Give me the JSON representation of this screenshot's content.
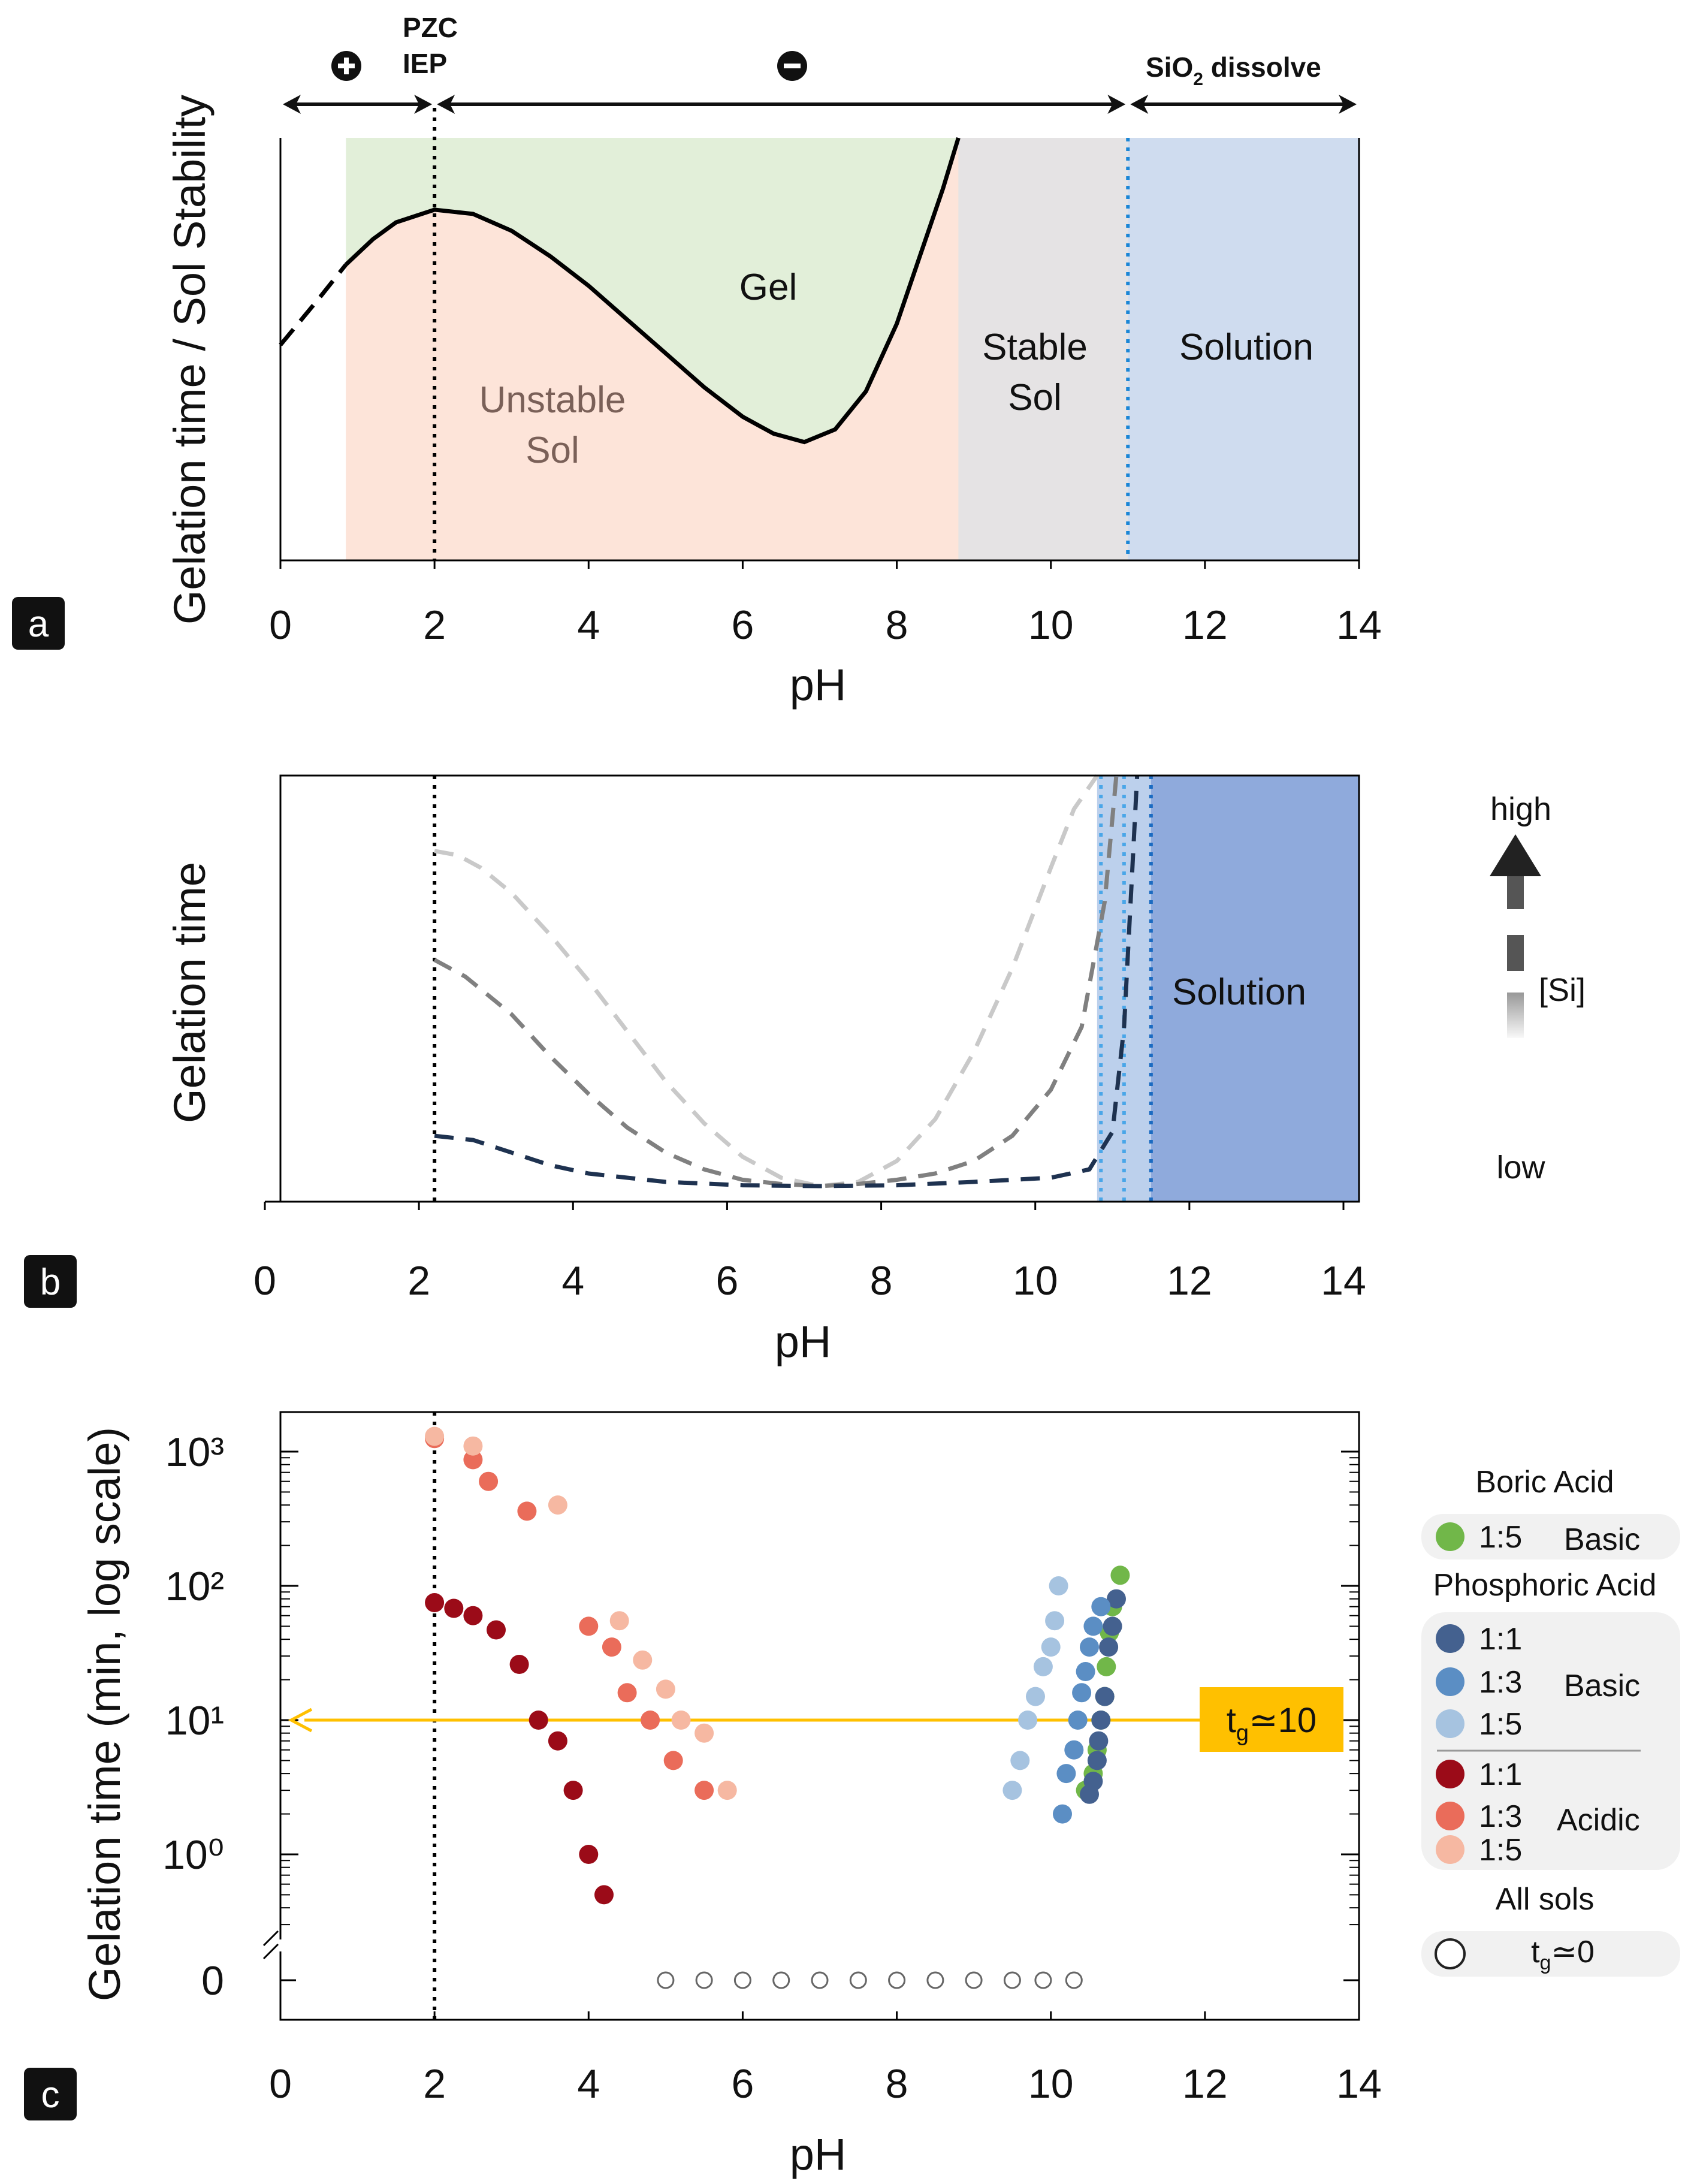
{
  "chart_data": [
    {
      "type": "area",
      "panel_label": "a",
      "title": "",
      "xlabel": "pH",
      "ylabel": "Gelation time / Sol Stability",
      "xlim": [
        0,
        14
      ],
      "xticks": [
        0,
        2,
        4,
        6,
        8,
        10,
        12,
        14
      ],
      "grid": false,
      "top_arrows": [
        {
          "label": "+",
          "from": 0,
          "to": 2
        },
        {
          "label": "−",
          "from": 2,
          "to": 11
        },
        {
          "label": "SiO₂ dissolve",
          "from": 11,
          "to": 14
        }
      ],
      "pzc_label_1": "PZC",
      "pzc_label_2": "IEP",
      "pzc_ph": 2,
      "dissolve_ph": 11,
      "regions": [
        {
          "name": "Gel",
          "label": "Gel",
          "x_from": 0.85,
          "x_to": 8.8,
          "color": "#e2efd9"
        },
        {
          "name": "Unstable Sol",
          "label_1": "Unstable",
          "label_2": "Sol",
          "x_from": 0.85,
          "x_to": 8.8,
          "color": "#fde4d9"
        },
        {
          "name": "Stable Sol",
          "label_1": "Stable",
          "label_2": "Sol",
          "x_from": 8.8,
          "x_to": 11,
          "color": "#e5e3e4"
        },
        {
          "name": "Solution",
          "label": "Solution",
          "x_from": 11,
          "x_to": 14,
          "color": "#cfdcef"
        }
      ],
      "curve": {
        "name": "gelation time boundary",
        "x": [
          0,
          0.5,
          0.85,
          1.2,
          1.5,
          2.0,
          2.5,
          3.0,
          3.5,
          4.0,
          4.5,
          5.0,
          5.5,
          6.0,
          6.4,
          6.8,
          7.2,
          7.6,
          8.0,
          8.3,
          8.6,
          8.8
        ],
        "y": [
          0.51,
          0.62,
          0.7,
          0.76,
          0.8,
          0.83,
          0.82,
          0.78,
          0.72,
          0.65,
          0.57,
          0.49,
          0.41,
          0.34,
          0.3,
          0.28,
          0.31,
          0.4,
          0.56,
          0.72,
          0.88,
          1.0
        ],
        "dashed_until_x": 0.85
      }
    },
    {
      "type": "line",
      "panel_label": "b",
      "title": "",
      "xlabel": "pH",
      "ylabel": "Gelation time",
      "xlim": [
        0,
        14
      ],
      "xticks": [
        0,
        2,
        4,
        6,
        8,
        10,
        12,
        14
      ],
      "grid": false,
      "region_label": "Solution",
      "legend": {
        "title_high": "high",
        "title_low": "low",
        "label": "[Si]"
      },
      "solution_bands": [
        {
          "x_from": 10.6,
          "x_to": 11.3,
          "color": "#bcd0ec"
        },
        {
          "x_from": 11.3,
          "x_to": 14,
          "color": "#8faadc"
        }
      ],
      "boundary_lines": [
        10.65,
        10.95,
        11.3
      ],
      "series": [
        {
          "name": "low [Si]",
          "color": "#c9c9c9",
          "x": [
            2,
            2.3,
            2.6,
            3,
            3.5,
            4,
            4.5,
            5,
            5.5,
            6,
            6.5,
            7,
            7.5,
            8,
            8.5,
            9,
            9.5,
            10,
            10.3,
            10.6
          ],
          "y": [
            0.82,
            0.81,
            0.78,
            0.72,
            0.62,
            0.51,
            0.39,
            0.27,
            0.17,
            0.09,
            0.04,
            0.02,
            0.03,
            0.08,
            0.18,
            0.34,
            0.54,
            0.78,
            0.92,
            1.0
          ]
        },
        {
          "name": "medium [Si]",
          "color": "#808080",
          "x": [
            2,
            2.4,
            3,
            3.5,
            4,
            4.5,
            5,
            5.5,
            6,
            6.5,
            7,
            7.5,
            8,
            8.5,
            9,
            9.5,
            10,
            10.4,
            10.7,
            10.85
          ],
          "y": [
            0.56,
            0.52,
            0.43,
            0.33,
            0.24,
            0.16,
            0.1,
            0.06,
            0.035,
            0.025,
            0.02,
            0.025,
            0.035,
            0.05,
            0.08,
            0.14,
            0.25,
            0.4,
            0.7,
            1.0
          ]
        },
        {
          "name": "high [Si]",
          "color": "#1e3250",
          "x": [
            2,
            2.5,
            3,
            3.5,
            4,
            5,
            6,
            7,
            8,
            9,
            10,
            10.5,
            10.8,
            10.95,
            11.05,
            11.12
          ],
          "y": [
            0.14,
            0.13,
            0.1,
            0.07,
            0.05,
            0.03,
            0.022,
            0.02,
            0.022,
            0.03,
            0.04,
            0.06,
            0.15,
            0.4,
            0.75,
            1.0
          ]
        }
      ]
    },
    {
      "type": "scatter",
      "panel_label": "c",
      "title": "",
      "xlabel": "pH",
      "ylabel": "Gelation time (min, log scale)",
      "xlim": [
        0,
        14
      ],
      "xticks": [
        0,
        2,
        4,
        6,
        8,
        10,
        12,
        14
      ],
      "yscale": "log",
      "ylim": [
        0.1,
        2000
      ],
      "yticklabels": [
        "0",
        "10⁰",
        "10¹",
        "10²",
        "10³"
      ],
      "pzc_ph": 2,
      "reference_line": {
        "y": 10,
        "label": "t_g≃10",
        "label_main": "t",
        "label_sub": "g",
        "label_rest": "≃10",
        "color": "#ffc000"
      },
      "legend_titles": {
        "boric": "Boric Acid",
        "phosphoric": "Phosphoric Acid",
        "all": "All sols"
      },
      "legend_groups": {
        "basic": "Basic",
        "acidic": "Acidic"
      },
      "legend_zero_main": "t",
      "legend_zero_sub": "g",
      "legend_zero_rest": "≃0",
      "series": [
        {
          "name": "Boric 1:5 Basic",
          "ratio": "1:5",
          "color": "#71b749",
          "x": [
            10.45,
            10.55,
            10.6,
            10.65,
            10.7,
            10.72,
            10.76,
            10.8,
            10.9
          ],
          "y": [
            3,
            4,
            6,
            10,
            15,
            25,
            45,
            70,
            120
          ]
        },
        {
          "name": "Phosphoric 1:1 Basic",
          "ratio": "1:1",
          "color": "#44618f",
          "x": [
            10.5,
            10.55,
            10.6,
            10.62,
            10.65,
            10.7,
            10.75,
            10.8,
            10.85
          ],
          "y": [
            2.8,
            3.5,
            5,
            7,
            10,
            15,
            35,
            50,
            80
          ]
        },
        {
          "name": "Phosphoric 1:3 Basic",
          "ratio": "1:3",
          "color": "#5b8ec4",
          "x": [
            10.15,
            10.2,
            10.3,
            10.35,
            10.4,
            10.45,
            10.5,
            10.55,
            10.65
          ],
          "y": [
            2,
            4,
            6,
            10,
            16,
            23,
            35,
            50,
            70
          ]
        },
        {
          "name": "Phosphoric 1:5 Basic",
          "ratio": "1:5",
          "color": "#a6c3e0",
          "x": [
            9.5,
            9.6,
            9.7,
            9.8,
            9.9,
            10.0,
            10.05,
            10.1
          ],
          "y": [
            3,
            5,
            10,
            15,
            25,
            35,
            55,
            100
          ]
        },
        {
          "name": "Phosphoric 1:1 Acidic",
          "ratio": "1:1",
          "color": "#9b0b18",
          "x": [
            2.0,
            2.25,
            2.5,
            2.8,
            3.1,
            3.35,
            3.6,
            3.8,
            4.0,
            4.2
          ],
          "y": [
            75,
            68,
            60,
            47,
            26,
            10,
            7,
            3,
            1,
            0.5
          ]
        },
        {
          "name": "Phosphoric 1:3 Acidic",
          "ratio": "1:3",
          "color": "#ea6c5a",
          "x": [
            2.0,
            2.5,
            2.7,
            3.2,
            4.0,
            4.3,
            4.5,
            4.8,
            5.1,
            5.5
          ],
          "y": [
            1250,
            870,
            600,
            360,
            50,
            35,
            16,
            10,
            5,
            3
          ]
        },
        {
          "name": "Phosphoric 1:5 Acidic",
          "ratio": "1:5",
          "color": "#f6b8a2",
          "x": [
            2.0,
            2.5,
            3.6,
            4.4,
            4.7,
            5.0,
            5.2,
            5.5,
            5.8
          ],
          "y": [
            1300,
            1100,
            400,
            55,
            28,
            17,
            10,
            8,
            3
          ]
        },
        {
          "name": "All sols t_g≃0",
          "ratio": "",
          "color": "#666666",
          "hollow": true,
          "x": [
            5.0,
            5.5,
            6.0,
            6.5,
            7.0,
            7.5,
            8.0,
            8.5,
            9.0,
            9.5,
            9.9,
            10.3
          ],
          "y": [
            0,
            0,
            0,
            0,
            0,
            0,
            0,
            0,
            0,
            0,
            0,
            0
          ]
        }
      ]
    }
  ]
}
